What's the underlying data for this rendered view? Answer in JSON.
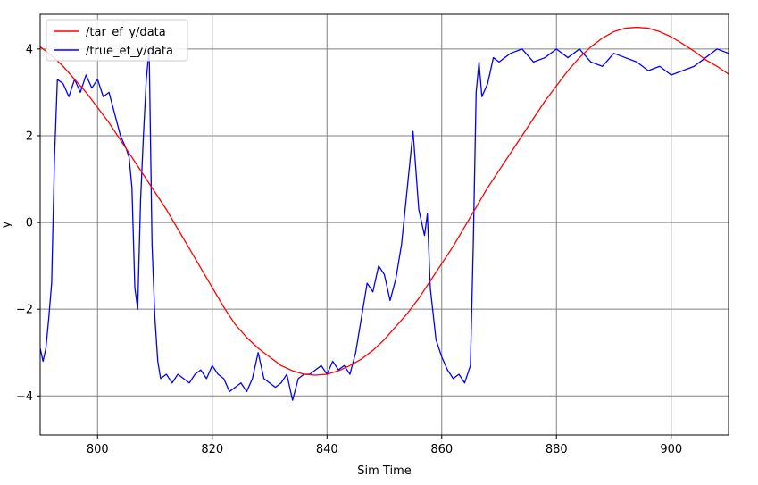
{
  "chart_data": {
    "type": "line",
    "title": "",
    "xlabel": "Sim Time",
    "ylabel": "y",
    "xlim": [
      790,
      910
    ],
    "ylim": [
      -4.9,
      4.8
    ],
    "xticks": [
      800,
      820,
      840,
      860,
      880,
      900
    ],
    "yticks": [
      -4,
      -2,
      0,
      2,
      4
    ],
    "grid": true,
    "legend_position": "top-left",
    "series": [
      {
        "name": "/tar_ef_y/data",
        "color": "#ff0000",
        "x": [
          790,
          792,
          794,
          796,
          798,
          800,
          802,
          804,
          806,
          808,
          810,
          812,
          814,
          816,
          818,
          820,
          822,
          824,
          826,
          828,
          830,
          832,
          834,
          836,
          838,
          840,
          842,
          844,
          846,
          848,
          850,
          852,
          854,
          856,
          858,
          860,
          862,
          864,
          866,
          868,
          870,
          872,
          874,
          876,
          878,
          880,
          882,
          884,
          886,
          888,
          890,
          892,
          894,
          896,
          898,
          900,
          902,
          904,
          906,
          908,
          910
        ],
        "y": [
          4.05,
          3.85,
          3.6,
          3.3,
          3.0,
          2.65,
          2.3,
          1.9,
          1.5,
          1.1,
          0.7,
          0.3,
          -0.15,
          -0.6,
          -1.05,
          -1.5,
          -1.95,
          -2.35,
          -2.65,
          -2.9,
          -3.1,
          -3.3,
          -3.42,
          -3.5,
          -3.52,
          -3.5,
          -3.42,
          -3.3,
          -3.15,
          -2.95,
          -2.7,
          -2.4,
          -2.1,
          -1.75,
          -1.35,
          -0.95,
          -0.55,
          -0.1,
          0.35,
          0.8,
          1.2,
          1.6,
          2.0,
          2.4,
          2.8,
          3.15,
          3.5,
          3.8,
          4.05,
          4.25,
          4.4,
          4.48,
          4.5,
          4.48,
          4.4,
          4.28,
          4.12,
          3.95,
          3.75,
          3.6,
          3.42
        ]
      },
      {
        "name": "/true_ef_y/data",
        "color": "#0000ff",
        "x": [
          790,
          790.5,
          791,
          791.5,
          792,
          792.5,
          793,
          794,
          795,
          796,
          797,
          798,
          799,
          800,
          801,
          802,
          803,
          804,
          805,
          805.5,
          806,
          806.5,
          807,
          807.5,
          808,
          808.5,
          809,
          809.5,
          810,
          810.5,
          811,
          812,
          813,
          814,
          815,
          816,
          817,
          818,
          819,
          820,
          821,
          822,
          823,
          824,
          825,
          826,
          827,
          828,
          829,
          830,
          831,
          832,
          833,
          834,
          835,
          836,
          837,
          838,
          839,
          840,
          841,
          842,
          843,
          844,
          845,
          846,
          847,
          848,
          849,
          850,
          851,
          852,
          853,
          854,
          855,
          856,
          857,
          857.5,
          858,
          858.5,
          859,
          860,
          861,
          862,
          863,
          864,
          865,
          865.5,
          866,
          866.5,
          867,
          868,
          869,
          870,
          872,
          874,
          876,
          878,
          880,
          882,
          884,
          886,
          888,
          890,
          892,
          894,
          896,
          898,
          900,
          902,
          904,
          906,
          908,
          910
        ],
        "y": [
          -2.9,
          -3.2,
          -2.9,
          -2.2,
          -1.4,
          1.5,
          3.3,
          3.2,
          2.9,
          3.3,
          3.0,
          3.4,
          3.1,
          3.3,
          2.9,
          3.0,
          2.5,
          2.0,
          1.7,
          1.5,
          0.8,
          -1.5,
          -2.0,
          0.5,
          2.0,
          3.3,
          4.0,
          -0.5,
          -2.2,
          -3.2,
          -3.6,
          -3.5,
          -3.7,
          -3.5,
          -3.6,
          -3.7,
          -3.5,
          -3.4,
          -3.6,
          -3.3,
          -3.5,
          -3.6,
          -3.9,
          -3.8,
          -3.7,
          -3.9,
          -3.6,
          -3.0,
          -3.6,
          -3.7,
          -3.8,
          -3.7,
          -3.5,
          -4.1,
          -3.6,
          -3.5,
          -3.5,
          -3.4,
          -3.3,
          -3.5,
          -3.2,
          -3.4,
          -3.3,
          -3.5,
          -3.0,
          -2.2,
          -1.4,
          -1.6,
          -1.0,
          -1.2,
          -1.8,
          -1.3,
          -0.5,
          0.8,
          2.1,
          0.3,
          -0.3,
          0.2,
          -1.5,
          -2.1,
          -2.7,
          -3.1,
          -3.4,
          -3.6,
          -3.5,
          -3.7,
          -3.3,
          -0.5,
          3.0,
          3.7,
          2.9,
          3.2,
          3.8,
          3.7,
          3.9,
          4.0,
          3.7,
          3.8,
          4.0,
          3.8,
          4.0,
          3.7,
          3.6,
          3.9,
          3.8,
          3.7,
          3.5,
          3.6,
          3.4,
          3.5,
          3.6,
          3.8,
          4.0,
          3.9
        ]
      }
    ]
  }
}
